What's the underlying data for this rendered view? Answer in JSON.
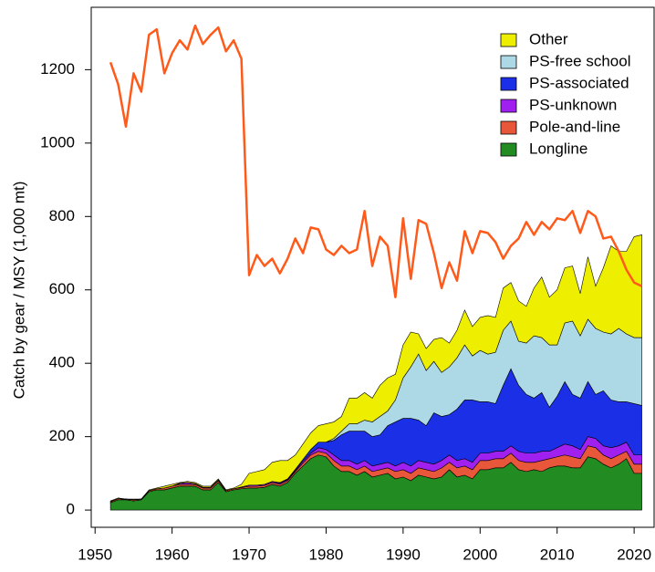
{
  "chart_data": {
    "type": "stacked_area",
    "ylabel": "Catch by gear / MSY (1,000 mt)",
    "x": [
      1952,
      1953,
      1954,
      1955,
      1956,
      1957,
      1958,
      1959,
      1960,
      1961,
      1962,
      1963,
      1964,
      1965,
      1966,
      1967,
      1968,
      1969,
      1970,
      1971,
      1972,
      1973,
      1974,
      1975,
      1976,
      1977,
      1978,
      1979,
      1980,
      1981,
      1982,
      1983,
      1984,
      1985,
      1986,
      1987,
      1988,
      1989,
      1990,
      1991,
      1992,
      1993,
      1994,
      1995,
      1996,
      1997,
      1998,
      1999,
      2000,
      2001,
      2002,
      2003,
      2004,
      2005,
      2006,
      2007,
      2008,
      2009,
      2010,
      2011,
      2012,
      2013,
      2014,
      2015,
      2016,
      2017,
      2018,
      2019,
      2020,
      2021
    ],
    "xlim": [
      1949.5,
      2022
    ],
    "ylim": [
      -47,
      1370
    ],
    "xticks": [
      1950,
      1960,
      1970,
      1980,
      1990,
      2000,
      2010,
      2020
    ],
    "yticks": [
      0,
      200,
      400,
      600,
      800,
      1000,
      1200
    ],
    "legend": "top-right",
    "series": [
      {
        "name": "Longline",
        "color": "#228b22",
        "values": [
          20,
          28,
          28,
          25,
          28,
          50,
          55,
          55,
          60,
          65,
          65,
          65,
          55,
          55,
          75,
          50,
          55,
          58,
          60,
          60,
          62,
          70,
          65,
          75,
          100,
          120,
          140,
          150,
          145,
          120,
          105,
          105,
          95,
          105,
          90,
          95,
          100,
          85,
          90,
          80,
          95,
          90,
          85,
          90,
          110,
          90,
          95,
          85,
          110,
          110,
          115,
          115,
          130,
          110,
          105,
          110,
          105,
          115,
          120,
          120,
          115,
          115,
          145,
          140,
          125,
          115,
          125,
          140,
          100,
          100
        ]
      },
      {
        "name": "Pole-and-line",
        "color": "#e8573a",
        "values": [
          3,
          3,
          2,
          3,
          2,
          3,
          3,
          5,
          5,
          5,
          5,
          5,
          5,
          5,
          5,
          3,
          3,
          3,
          5,
          5,
          5,
          5,
          5,
          5,
          5,
          8,
          10,
          10,
          10,
          15,
          15,
          15,
          15,
          15,
          15,
          15,
          15,
          20,
          20,
          20,
          20,
          20,
          20,
          25,
          20,
          25,
          25,
          25,
          25,
          25,
          25,
          25,
          25,
          25,
          25,
          20,
          30,
          25,
          25,
          30,
          30,
          25,
          30,
          30,
          25,
          25,
          25,
          20,
          25,
          25
        ]
      },
      {
        "name": "PS-unknown",
        "color": "#a020f0",
        "values": [
          0,
          0,
          0,
          0,
          0,
          0,
          0,
          0,
          0,
          3,
          5,
          2,
          2,
          2,
          2,
          0,
          0,
          2,
          3,
          3,
          3,
          3,
          3,
          3,
          3,
          5,
          5,
          10,
          10,
          15,
          15,
          15,
          15,
          15,
          15,
          15,
          15,
          15,
          20,
          20,
          20,
          20,
          20,
          20,
          20,
          20,
          20,
          20,
          20,
          20,
          20,
          20,
          20,
          25,
          25,
          25,
          25,
          20,
          25,
          30,
          30,
          25,
          25,
          25,
          25,
          30,
          25,
          25,
          25,
          25
        ]
      },
      {
        "name": "PS-associated",
        "color": "#1a2fe6",
        "values": [
          0,
          0,
          0,
          0,
          0,
          0,
          0,
          0,
          0,
          0,
          0,
          0,
          0,
          0,
          0,
          0,
          0,
          0,
          0,
          0,
          0,
          0,
          2,
          2,
          3,
          5,
          10,
          15,
          20,
          40,
          70,
          80,
          90,
          80,
          80,
          80,
          100,
          120,
          120,
          130,
          110,
          100,
          140,
          120,
          110,
          140,
          160,
          170,
          140,
          140,
          130,
          180,
          210,
          180,
          160,
          150,
          160,
          120,
          140,
          170,
          140,
          140,
          150,
          120,
          150,
          130,
          120,
          110,
          140,
          135
        ]
      },
      {
        "name": "PS-free school",
        "color": "#add8e6",
        "values": [
          0,
          0,
          0,
          0,
          0,
          0,
          0,
          0,
          0,
          0,
          0,
          0,
          0,
          0,
          0,
          0,
          0,
          0,
          0,
          0,
          0,
          0,
          0,
          0,
          0,
          0,
          0,
          0,
          0,
          5,
          10,
          20,
          20,
          30,
          40,
          50,
          40,
          60,
          110,
          140,
          180,
          150,
          140,
          120,
          130,
          140,
          150,
          120,
          140,
          130,
          140,
          150,
          130,
          120,
          140,
          170,
          150,
          170,
          140,
          160,
          200,
          170,
          170,
          180,
          160,
          180,
          200,
          185,
          180,
          185
        ]
      },
      {
        "name": "Other",
        "color": "#eeee00",
        "values": [
          2,
          2,
          0,
          2,
          0,
          2,
          2,
          5,
          5,
          2,
          3,
          3,
          3,
          3,
          3,
          2,
          2,
          7,
          32,
          37,
          40,
          52,
          60,
          50,
          39,
          42,
          45,
          45,
          50,
          45,
          40,
          70,
          70,
          75,
          65,
          85,
          90,
          70,
          90,
          95,
          55,
          60,
          60,
          95,
          65,
          75,
          95,
          80,
          90,
          105,
          95,
          115,
          105,
          110,
          100,
          130,
          165,
          130,
          150,
          150,
          150,
          115,
          170,
          115,
          175,
          240,
          210,
          225,
          275,
          280
        ]
      }
    ],
    "line_color": "#ff5a1a",
    "line_values": [
      1220,
      1160,
      1045,
      1190,
      1140,
      1295,
      1310,
      1190,
      1245,
      1280,
      1255,
      1320,
      1270,
      1295,
      1315,
      1250,
      1280,
      1230,
      640,
      695,
      665,
      685,
      645,
      685,
      740,
      700,
      770,
      765,
      710,
      695,
      720,
      700,
      710,
      815,
      665,
      745,
      720,
      580,
      795,
      630,
      790,
      780,
      700,
      605,
      675,
      625,
      760,
      700,
      760,
      755,
      730,
      685,
      720,
      740,
      785,
      750,
      785,
      765,
      795,
      790,
      815,
      755,
      815,
      800,
      740,
      745,
      705,
      655,
      620,
      610
    ]
  }
}
